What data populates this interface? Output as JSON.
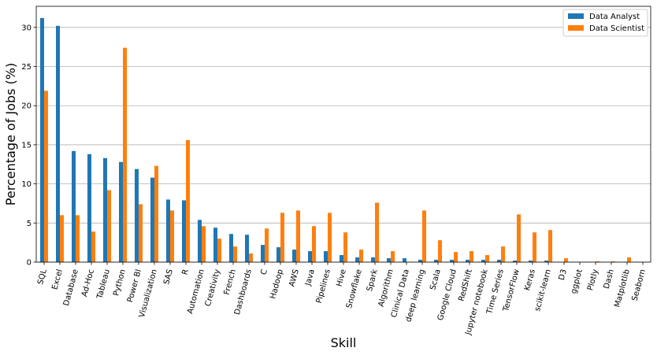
{
  "chart_data": {
    "type": "bar",
    "xlabel": "Skill",
    "ylabel": "Percentage of Jobs (%)",
    "ylim": [
      0,
      32.7
    ],
    "yticks": [
      0,
      5,
      10,
      15,
      20,
      25,
      30
    ],
    "grid": "horizontal",
    "legend_position": "top-right",
    "categories": [
      "SQL",
      "Excel",
      "Database",
      "Ad-Hoc",
      "Tableau",
      "Python",
      "Power BI",
      "Visualization",
      "SAS",
      "R",
      "Automation",
      "Creativity",
      "French",
      "Dashboards",
      "C",
      "Hadoop",
      "AWS",
      "Java",
      "Pipelines",
      "Hive",
      "Snowflake",
      "Spark",
      "Algorithm",
      "Clinical Data",
      "deep learning",
      "Scala",
      "Google Cloud",
      "RedShift",
      "Jupyter notebook",
      "Time Series",
      "TensorFlow",
      "Keras",
      "scikit-learn",
      "D3",
      "ggplot",
      "Plotly",
      "Dash",
      "Matplotlib",
      "Seaborn"
    ],
    "series": [
      {
        "name": "Data Analyst",
        "color": "#1f77b4",
        "values": [
          31.2,
          30.2,
          14.2,
          13.8,
          13.3,
          12.8,
          11.9,
          10.8,
          8.0,
          7.9,
          5.4,
          4.4,
          3.6,
          3.5,
          2.2,
          1.9,
          1.6,
          1.4,
          1.4,
          0.9,
          0.6,
          0.6,
          0.5,
          0.5,
          0.3,
          0.3,
          0.3,
          0.3,
          0.3,
          0.3,
          0.2,
          0.2,
          0.2,
          0.0,
          0.0,
          0.0,
          0.0,
          0.0,
          0.0
        ]
      },
      {
        "name": "Data Scientist",
        "color": "#ff7f0e",
        "values": [
          21.9,
          6.0,
          6.0,
          3.9,
          9.2,
          27.4,
          7.4,
          12.3,
          6.6,
          15.6,
          4.6,
          3.0,
          2.0,
          1.1,
          4.3,
          6.3,
          6.6,
          4.6,
          6.3,
          3.8,
          1.6,
          7.6,
          1.4,
          0.0,
          6.6,
          2.8,
          1.3,
          1.4,
          0.9,
          2.0,
          6.1,
          3.8,
          4.1,
          0.5,
          0.0,
          0.1,
          0.1,
          0.6,
          0.0
        ]
      }
    ]
  }
}
